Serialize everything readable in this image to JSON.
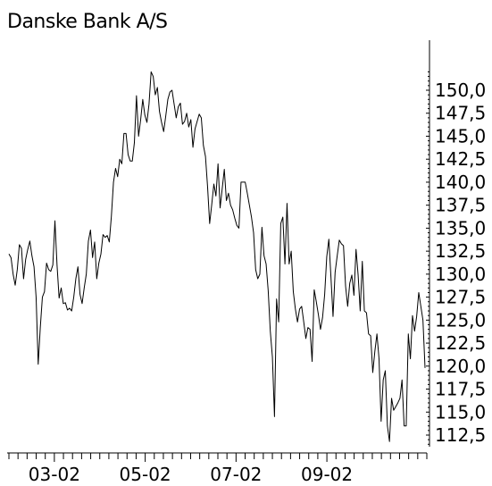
{
  "chart_data": {
    "type": "line",
    "title": "Danske Bank A/S",
    "xlabel": "",
    "ylabel": "",
    "y_axis_position": "right",
    "ylim": [
      111.5,
      152.0
    ],
    "y_ticks": [
      "150,0",
      "147,5",
      "145,0",
      "142,5",
      "140,0",
      "137,5",
      "135,0",
      "132,5",
      "130,0",
      "127,5",
      "125,0",
      "122,5",
      "120,0",
      "117,5",
      "115,0",
      "112,5"
    ],
    "y_tick_values": [
      150.0,
      147.5,
      145.0,
      142.5,
      140.0,
      137.5,
      135.0,
      132.5,
      130.0,
      127.5,
      125.0,
      122.5,
      120.0,
      117.5,
      115.0,
      112.5
    ],
    "x_tick_labels": [
      "03-02",
      "05-02",
      "07-02",
      "09-02"
    ],
    "x_tick_label_index": [
      25,
      75,
      125,
      175
    ],
    "x_minor_tick_every": 5,
    "x_range": [
      0,
      230
    ],
    "grid": false,
    "legend": "none",
    "line_color": "#000000",
    "series": [
      {
        "values": [
          132.2,
          131.8,
          130.0,
          128.8,
          130.5,
          133.2,
          132.8,
          129.5,
          131.6,
          132.7,
          133.6,
          132.0,
          130.8,
          127.5,
          120.2,
          124.2,
          127.5,
          128.1,
          131.2,
          130.5,
          130.3,
          131.0,
          135.8,
          131.0,
          127.4,
          128.5,
          126.8,
          126.9,
          126.1,
          126.3,
          126.0,
          127.5,
          129.5,
          130.8,
          127.8,
          126.8,
          128.5,
          130.0,
          133.6,
          134.8,
          131.8,
          133.5,
          129.5,
          131.2,
          132.2,
          134.3,
          134.0,
          134.2,
          133.5,
          136.3,
          140.0,
          141.5,
          140.6,
          142.5,
          142.0,
          145.3,
          145.3,
          143.0,
          142.3,
          142.3,
          144.3,
          149.4,
          145.0,
          146.8,
          149.0,
          147.3,
          146.5,
          148.5,
          152.0,
          151.5,
          149.5,
          150.3,
          147.7,
          146.5,
          145.5,
          147.2,
          149.0,
          149.8,
          150.0,
          148.5,
          147.0,
          148.2,
          148.6,
          146.3,
          146.6,
          147.5,
          146.0,
          146.8,
          143.8,
          145.8,
          146.6,
          147.4,
          147.0,
          144.0,
          142.8,
          139.5,
          135.5,
          137.6,
          139.8,
          138.5,
          142.0,
          137.2,
          139.3,
          141.4,
          138.0,
          138.8,
          137.5,
          137.0,
          136.1,
          135.3,
          135.0,
          140.0,
          140.0,
          140.0,
          138.8,
          137.5,
          136.2,
          134.5,
          130.5,
          129.5,
          130.0,
          135.1,
          132.0,
          131.1,
          128.2,
          123.8,
          121.0,
          114.5,
          127.3,
          124.8,
          135.5,
          136.2,
          131.1,
          137.7,
          131.1,
          132.5,
          128.1,
          126.2,
          124.8,
          126.2,
          126.5,
          124.8,
          123.0,
          124.2,
          124.0,
          120.5,
          128.3,
          127.0,
          125.6,
          124.0,
          125.3,
          127.8,
          131.9,
          133.8,
          129.7,
          125.4,
          130.2,
          132.0,
          133.7,
          133.3,
          133.1,
          128.7,
          126.5,
          129.0,
          129.9,
          127.7,
          132.7,
          129.9,
          126.0,
          131.4,
          126.0,
          125.8,
          123.5,
          123.3,
          119.3,
          121.6,
          123.5,
          120.8,
          114.0,
          118.5,
          119.5,
          113.5,
          111.8,
          116.5,
          115.2,
          115.6,
          116.0,
          116.5,
          118.5,
          113.5,
          113.5,
          123.5,
          120.8,
          125.5,
          123.8,
          125.4,
          128.0,
          126.5,
          125.0,
          119.8
        ]
      }
    ]
  }
}
